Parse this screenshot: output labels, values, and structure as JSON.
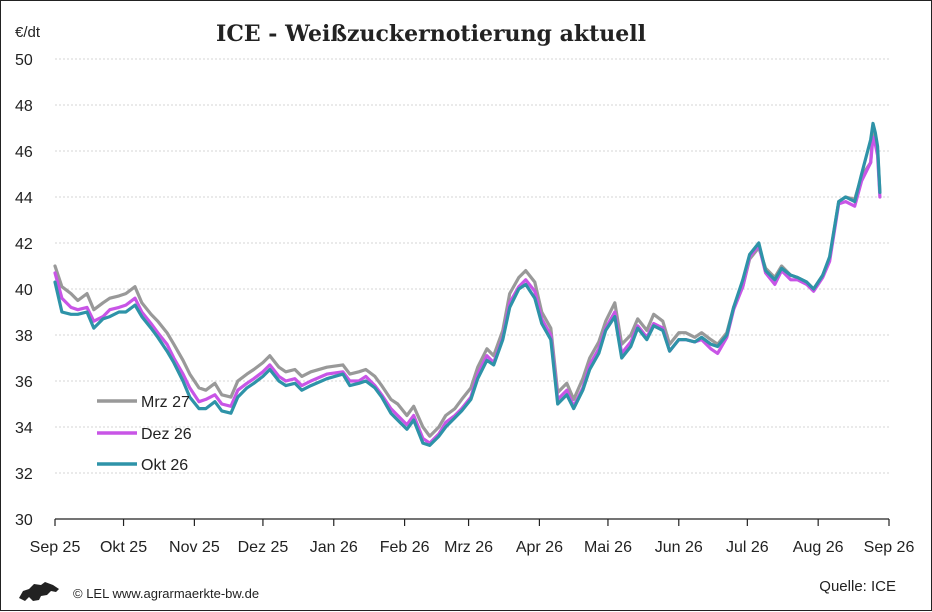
{
  "chart_data": {
    "type": "line",
    "title": "ICE - Weißzuckernotierung aktuell",
    "unit_label": "€/dt",
    "ylim": [
      30,
      50
    ],
    "yticks": [
      30,
      32,
      34,
      36,
      38,
      40,
      42,
      44,
      46,
      48,
      50
    ],
    "xticks": [
      {
        "date": "2025-09-01",
        "label": "Sep 25"
      },
      {
        "date": "2025-10-01",
        "label": "Okt 25"
      },
      {
        "date": "2025-11-01",
        "label": "Nov 25"
      },
      {
        "date": "2025-12-01",
        "label": "Dez 25"
      },
      {
        "date": "2026-01-01",
        "label": "Jan 26"
      },
      {
        "date": "2026-02-01",
        "label": "Feb 26"
      },
      {
        "date": "2026-03-01",
        "label": "Mrz 26"
      },
      {
        "date": "2026-04-01",
        "label": "Apr 26"
      },
      {
        "date": "2026-05-01",
        "label": "Mai 26"
      },
      {
        "date": "2026-06-01",
        "label": "Jun 26"
      },
      {
        "date": "2026-07-01",
        "label": "Jul 26"
      },
      {
        "date": "2026-08-01",
        "label": "Aug 26"
      },
      {
        "date": "2026-09-01",
        "label": "Sep 26"
      }
    ],
    "grid": true,
    "legend_position": "left-lower",
    "x": [
      "2025-09-01",
      "2025-09-04",
      "2025-09-08",
      "2025-09-11",
      "2025-09-15",
      "2025-09-18",
      "2025-09-22",
      "2025-09-25",
      "2025-09-29",
      "2025-10-02",
      "2025-10-06",
      "2025-10-09",
      "2025-10-13",
      "2025-10-16",
      "2025-10-20",
      "2025-10-23",
      "2025-10-27",
      "2025-10-30",
      "2025-11-03",
      "2025-11-06",
      "2025-11-10",
      "2025-11-13",
      "2025-11-17",
      "2025-11-20",
      "2025-11-24",
      "2025-11-27",
      "2025-12-01",
      "2025-12-04",
      "2025-12-08",
      "2025-12-11",
      "2025-12-15",
      "2025-12-18",
      "2025-12-22",
      "2025-12-29",
      "2026-01-05",
      "2026-01-08",
      "2026-01-12",
      "2026-01-15",
      "2026-01-19",
      "2026-01-22",
      "2026-01-26",
      "2026-01-29",
      "2026-02-02",
      "2026-02-05",
      "2026-02-09",
      "2026-02-12",
      "2026-02-16",
      "2026-02-19",
      "2026-02-23",
      "2026-02-26",
      "2026-03-02",
      "2026-03-05",
      "2026-03-09",
      "2026-03-12",
      "2026-03-16",
      "2026-03-19",
      "2026-03-23",
      "2026-03-26",
      "2026-03-30",
      "2026-04-02",
      "2026-04-06",
      "2026-04-09",
      "2026-04-13",
      "2026-04-16",
      "2026-04-20",
      "2026-04-23",
      "2026-04-27",
      "2026-04-30",
      "2026-05-04",
      "2026-05-07",
      "2026-05-11",
      "2026-05-14",
      "2026-05-18",
      "2026-05-21",
      "2026-05-25",
      "2026-05-28",
      "2026-06-01",
      "2026-06-04",
      "2026-06-08",
      "2026-06-11",
      "2026-06-15",
      "2026-06-18",
      "2026-06-22",
      "2026-06-25",
      "2026-06-29",
      "2026-07-02",
      "2026-07-06",
      "2026-07-09",
      "2026-07-13",
      "2026-07-16",
      "2026-07-20",
      "2026-07-23",
      "2026-07-27",
      "2026-07-30",
      "2026-08-03",
      "2026-08-06",
      "2026-08-10",
      "2026-08-13",
      "2026-08-17",
      "2026-08-20",
      "2026-08-24"
    ],
    "series": [
      {
        "name": "Mrz 27",
        "color": "#999999",
        "values": [
          41.0,
          40.1,
          39.8,
          39.5,
          39.8,
          39.1,
          39.4,
          39.6,
          39.7,
          39.8,
          40.1,
          39.4,
          38.9,
          38.6,
          38.1,
          37.6,
          36.9,
          36.3,
          35.7,
          35.6,
          35.9,
          35.4,
          35.3,
          36.0,
          36.3,
          36.5,
          36.8,
          37.1,
          36.6,
          36.4,
          36.5,
          36.2,
          36.4,
          36.6,
          36.7,
          36.3,
          36.4,
          36.5,
          36.2,
          35.8,
          35.2,
          35.0,
          34.5,
          34.9,
          34.0,
          33.6,
          34.0,
          34.5,
          34.8,
          35.2,
          35.7,
          36.6,
          37.4,
          37.1,
          38.2,
          39.8,
          40.5,
          40.8,
          40.3,
          39.0,
          38.3,
          35.5,
          35.9,
          35.2,
          36.1,
          37.0,
          37.7,
          38.6,
          39.4,
          37.6,
          38.0,
          38.7,
          38.2,
          38.9,
          38.6,
          37.6,
          38.1,
          38.1,
          37.9,
          38.1,
          37.8,
          37.6,
          38.1,
          39.2,
          40.1,
          41.3,
          41.8,
          40.9,
          40.5,
          41.0,
          40.6,
          40.5,
          40.3,
          40.0,
          40.6,
          41.3,
          43.8,
          44.0,
          43.9,
          44.9,
          45.5
        ]
      },
      {
        "name": "Dez 26",
        "color": "#c855e6",
        "values": [
          40.7,
          39.6,
          39.2,
          39.1,
          39.2,
          38.6,
          38.8,
          39.1,
          39.2,
          39.3,
          39.6,
          39.0,
          38.5,
          38.1,
          37.6,
          37.0,
          36.3,
          35.7,
          35.1,
          35.2,
          35.4,
          35.0,
          34.9,
          35.6,
          35.9,
          36.1,
          36.4,
          36.7,
          36.2,
          36.0,
          36.1,
          35.8,
          36.0,
          36.3,
          36.4,
          36.0,
          36.0,
          36.2,
          35.8,
          35.4,
          34.8,
          34.5,
          34.1,
          34.5,
          33.5,
          33.3,
          33.7,
          34.2,
          34.5,
          34.8,
          35.3,
          36.3,
          37.1,
          36.8,
          37.9,
          39.4,
          40.1,
          40.4,
          39.9,
          38.7,
          38.0,
          35.2,
          35.6,
          34.9,
          35.7,
          36.7,
          37.4,
          38.3,
          39.0,
          37.2,
          37.7,
          38.4,
          37.9,
          38.5,
          38.3,
          37.3,
          37.8,
          37.8,
          37.7,
          37.8,
          37.4,
          37.2,
          37.9,
          39.1,
          40.1,
          41.4,
          41.9,
          40.7,
          40.2,
          40.8,
          40.4,
          40.4,
          40.2,
          39.9,
          40.5,
          41.2,
          43.7,
          43.8,
          43.6,
          44.7,
          45.5
        ]
      },
      {
        "name": "Okt 26",
        "color": "#2e93a8",
        "values": [
          40.3,
          39.0,
          38.9,
          38.9,
          39.0,
          38.3,
          38.7,
          38.8,
          39.0,
          39.0,
          39.3,
          38.8,
          38.3,
          37.9,
          37.3,
          36.8,
          36.0,
          35.3,
          34.8,
          34.8,
          35.1,
          34.7,
          34.6,
          35.3,
          35.7,
          35.9,
          36.2,
          36.5,
          36.0,
          35.8,
          35.9,
          35.6,
          35.8,
          36.1,
          36.3,
          35.8,
          35.9,
          36.0,
          35.7,
          35.3,
          34.6,
          34.3,
          33.9,
          34.3,
          33.3,
          33.2,
          33.6,
          34.0,
          34.4,
          34.7,
          35.2,
          36.1,
          36.9,
          36.7,
          37.8,
          39.2,
          40.0,
          40.2,
          39.6,
          38.5,
          37.8,
          35.0,
          35.4,
          34.8,
          35.6,
          36.5,
          37.2,
          38.2,
          38.8,
          37.0,
          37.5,
          38.3,
          37.8,
          38.4,
          38.2,
          37.3,
          37.8,
          37.8,
          37.7,
          37.9,
          37.6,
          37.5,
          38.0,
          39.2,
          40.4,
          41.5,
          42.0,
          40.8,
          40.4,
          40.9,
          40.6,
          40.5,
          40.3,
          40.0,
          40.6,
          41.4,
          43.8,
          44.0,
          43.8,
          45.0,
          46.5
        ]
      }
    ]
  },
  "tail_points": {
    "x": [
      "2026-08-25",
      "2026-08-26",
      "2026-08-27",
      "2026-08-28"
    ],
    "series": [
      {
        "name": "Mrz 27",
        "values": [
          47.0,
          46.5,
          46.0,
          44.2
        ]
      },
      {
        "name": "Dez 26",
        "values": [
          46.6,
          46.3,
          45.8,
          44.0
        ]
      },
      {
        "name": "Okt 26",
        "values": [
          47.2,
          46.8,
          46.2,
          44.2
        ]
      }
    ]
  },
  "footer": {
    "credit": "© LEL www.agrarmaerkte-bw.de",
    "source": "Quelle: ICE",
    "logo_name": "baden-wuerttemberg-lion-logo"
  }
}
